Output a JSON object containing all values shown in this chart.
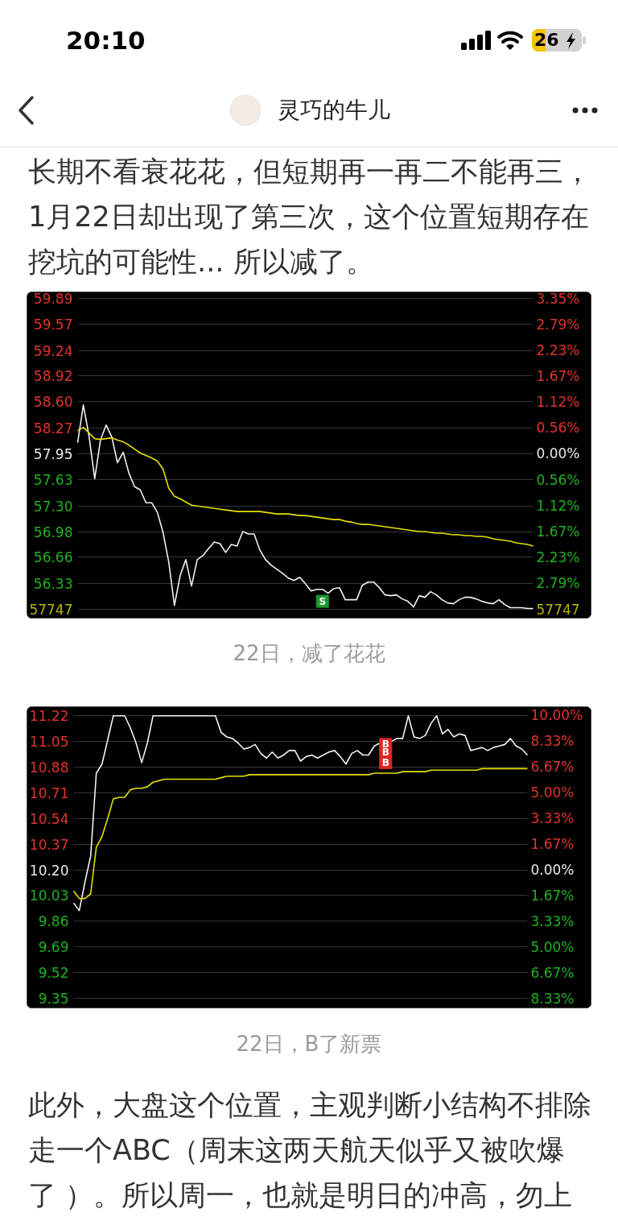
{
  "chart_data": [
    {
      "type": "line",
      "categories": [
        null,
        null,
        null,
        null,
        null,
        null,
        null,
        null,
        null,
        null,
        null,
        null,
        null,
        null,
        null,
        null,
        null,
        null,
        null,
        null,
        null,
        null,
        null,
        null,
        null,
        null,
        null,
        null,
        null,
        null,
        null,
        null,
        null,
        null,
        null,
        null,
        null,
        null,
        null,
        null,
        null,
        null,
        null,
        null,
        null,
        null,
        null,
        null,
        null,
        null,
        null,
        null,
        null,
        null,
        null,
        null,
        null,
        null,
        null,
        null,
        null,
        null,
        null,
        null,
        null,
        null,
        null,
        null,
        null,
        null,
        null,
        null,
        null,
        null,
        null,
        null,
        null,
        null,
        null,
        null,
        null
      ],
      "ylim": [
        55.89,
        59.97
      ],
      "yticks": [
        59.89,
        59.57,
        59.24,
        58.92,
        {
          "value": 58.6,
          "label": "58.60"
        },
        58.27,
        57.95,
        57.63,
        {
          "value": 57.3,
          "label": "57.30"
        },
        56.98,
        56.66,
        56.33,
        {
          "value": 56.01,
          "label": null
        }
      ],
      "y2lim": [
        -3.56,
        3.49
      ],
      "y2ticks": [
        {
          "value": 3.35,
          "label": "3.35%"
        },
        {
          "value": 2.79,
          "label": "2.79%"
        },
        {
          "value": 2.23,
          "label": "2.23%"
        },
        {
          "value": 1.67,
          "label": "1.67%"
        },
        {
          "value": 1.12,
          "label": "1.12%"
        },
        {
          "value": 0.56,
          "label": "0.56%"
        },
        {
          "value": 0,
          "label": "0.00%"
        },
        {
          "value": -0.56,
          "label": "0.56%"
        },
        {
          "value": -1.12,
          "label": "1.12%"
        },
        {
          "value": -1.67,
          "label": "1.67%"
        },
        {
          "value": -2.23,
          "label": "2.23%"
        },
        {
          "value": -2.79,
          "label": "2.79%"
        }
      ],
      "grid": "y",
      "series": [
        {
          "color": "#f2f2f2",
          "values": [
            58.09,
            58.56,
            58.17,
            57.64,
            58.12,
            58.31,
            58.16,
            57.84,
            57.97,
            57.71,
            57.54,
            57.5,
            57.34,
            57.34,
            57.22,
            56.97,
            56.6,
            56.06,
            56.43,
            56.63,
            56.3,
            56.63,
            56.68,
            56.77,
            56.85,
            56.83,
            56.72,
            56.82,
            56.8,
            56.98,
            56.95,
            56.95,
            56.75,
            56.63,
            56.56,
            56.51,
            56.46,
            56.4,
            56.37,
            56.41,
            56.33,
            56.24,
            56.26,
            56.26,
            56.21,
            56.27,
            56.28,
            56.13,
            56.13,
            56.13,
            56.31,
            56.35,
            56.35,
            56.28,
            56.19,
            56.18,
            56.19,
            56.14,
            56.11,
            56.04,
            56.18,
            56.16,
            56.23,
            56.19,
            56.13,
            56.09,
            56.08,
            56.13,
            56.16,
            56.16,
            56.14,
            56.11,
            56.09,
            56.08,
            56.13,
            56.07,
            56.03,
            56.03,
            56.03,
            56.02,
            56.02
          ]
        },
        {
          "color": "#e3e000",
          "values": [
            58.24,
            58.28,
            58.21,
            58.14,
            58.13,
            58.14,
            58.15,
            58.12,
            58.1,
            58.06,
            58.01,
            57.96,
            57.93,
            57.9,
            57.86,
            57.76,
            57.52,
            57.42,
            57.39,
            57.35,
            57.31,
            57.3,
            57.29,
            57.28,
            57.27,
            57.26,
            57.25,
            57.24,
            57.23,
            57.23,
            57.23,
            57.23,
            57.23,
            57.22,
            57.21,
            57.2,
            57.2,
            57.2,
            57.19,
            57.18,
            57.18,
            57.17,
            57.16,
            57.15,
            57.14,
            57.13,
            57.13,
            57.11,
            57.1,
            57.08,
            57.07,
            57.07,
            57.06,
            57.05,
            57.04,
            57.03,
            57.02,
            57.01,
            57.0,
            56.99,
            56.98,
            56.98,
            56.97,
            56.96,
            56.96,
            56.95,
            56.94,
            56.94,
            56.93,
            56.93,
            56.92,
            56.92,
            56.91,
            56.89,
            56.88,
            56.87,
            56.86,
            56.84,
            56.83,
            56.82,
            56.8
          ]
        },
        {
          "type": "scatter",
          "marker": "square",
          "color": "#1f9a30",
          "values": [
            null,
            null,
            null,
            null,
            null,
            null,
            null,
            null,
            null,
            null,
            null,
            null,
            null,
            null,
            null,
            null,
            null,
            null,
            null,
            null,
            null,
            null,
            null,
            null,
            null,
            null,
            null,
            null,
            null,
            null,
            null,
            null,
            null,
            null,
            null,
            null,
            null,
            null,
            null,
            null,
            null,
            null,
            null,
            56.11,
            null,
            null,
            null,
            null,
            null,
            null,
            null,
            null,
            null,
            null,
            null,
            null,
            null,
            null,
            null,
            null,
            null,
            null,
            null,
            null,
            null,
            null,
            null,
            null,
            null,
            null,
            null,
            null,
            null,
            null,
            null,
            null,
            null,
            null,
            null,
            null,
            null
          ],
          "value_labels": [
            null,
            null,
            null,
            null,
            null,
            null,
            null,
            null,
            null,
            null,
            null,
            null,
            null,
            null,
            null,
            null,
            null,
            null,
            null,
            null,
            null,
            null,
            null,
            null,
            null,
            null,
            null,
            null,
            null,
            null,
            null,
            null,
            null,
            null,
            null,
            null,
            null,
            null,
            null,
            null,
            null,
            null,
            null,
            "S",
            null,
            null,
            null,
            null,
            null,
            null,
            null,
            null,
            null,
            null,
            null,
            null,
            null,
            null,
            null,
            null,
            null,
            null,
            null,
            null,
            null,
            null,
            null,
            null,
            null,
            null,
            null,
            null,
            null,
            null,
            null,
            null,
            null,
            null,
            null,
            null,
            null
          ]
        }
      ],
      "annotations": [
        "20:10",
        "26",
        "灵巧的牛儿",
        "长期不看衰花花，但短期再一再二不能再三，",
        "1月22日却出现了第三次，这个位置短期存在",
        "挖坑的可能性... 所以减了。",
        "57747",
        "57747",
        "22日，减了花花"
      ]
    },
    {
      "type": "line",
      "categories": [
        null,
        null,
        null,
        null,
        null,
        null,
        null,
        null,
        null,
        null,
        null,
        null,
        null,
        null,
        null,
        null,
        null,
        null,
        null,
        null,
        null,
        null,
        null,
        null,
        null,
        null,
        null,
        null,
        null,
        null,
        null,
        null,
        null,
        null,
        null,
        null,
        null,
        null,
        null,
        null,
        null,
        null,
        null,
        null,
        null,
        null,
        null,
        null,
        null,
        null,
        null,
        null,
        null,
        null,
        null,
        null,
        null,
        null,
        null,
        null,
        null,
        null,
        null,
        null,
        null,
        null,
        null,
        null,
        null,
        null,
        null,
        null,
        null,
        null,
        null,
        null,
        null,
        null,
        null,
        null,
        null
      ],
      "ylim": [
        9.28,
        11.28
      ],
      "yticks": [
        11.22,
        11.05,
        10.88,
        10.71,
        10.54,
        10.37,
        {
          "value": 10.2,
          "label": "10.20"
        },
        10.03,
        9.86,
        9.69,
        9.52,
        9.35
      ],
      "y2lim": [
        -8.99,
        10.56
      ],
      "y2ticks": [
        {
          "value": 10.0,
          "label": "10.00%"
        },
        {
          "value": 8.33,
          "label": "8.33%"
        },
        {
          "value": 6.67,
          "label": "6.67%"
        },
        {
          "value": 5.0,
          "label": "5.00%"
        },
        {
          "value": 3.33,
          "label": "3.33%"
        },
        {
          "value": 1.67,
          "label": "1.67%"
        },
        {
          "value": 0,
          "label": "0.00%"
        },
        {
          "value": -1.67,
          "label": "1.67%"
        },
        {
          "value": -3.33,
          "label": "3.33%"
        },
        {
          "value": -5.0,
          "label": "5.00%"
        },
        {
          "value": -6.67,
          "label": "6.67%"
        },
        {
          "value": -8.33,
          "label": "8.33%"
        }
      ],
      "grid": "y",
      "series": [
        {
          "color": "#f2f2f2",
          "values": [
            9.98,
            9.93,
            10.12,
            10.29,
            10.84,
            10.9,
            11.06,
            11.22,
            11.22,
            11.22,
            11.14,
            11.04,
            10.91,
            11.04,
            11.22,
            11.22,
            11.22,
            11.22,
            11.22,
            11.22,
            11.22,
            11.22,
            11.22,
            11.22,
            11.22,
            11.22,
            11.11,
            11.08,
            11.07,
            11.04,
            11.0,
            11.01,
            11.03,
            10.97,
            10.94,
            10.98,
            10.94,
            10.96,
            10.99,
            10.99,
            10.92,
            10.95,
            10.96,
            10.94,
            10.96,
            10.98,
            10.99,
            10.95,
            10.9,
            10.97,
            10.99,
            10.96,
            10.96,
            11.02,
            11.04,
            11.04,
            11.05,
            11.07,
            11.07,
            11.22,
            11.08,
            11.07,
            11.09,
            11.17,
            11.22,
            11.1,
            11.13,
            11.08,
            11.1,
            11.09,
            10.99,
            11.0,
            11.01,
            10.99,
            11.01,
            11.02,
            11.03,
            11.07,
            11.02,
            11.0,
            10.96
          ]
        },
        {
          "color": "#e3e000",
          "values": [
            10.06,
            10.01,
            10.01,
            10.04,
            10.35,
            10.42,
            10.54,
            10.67,
            10.68,
            10.68,
            10.73,
            10.74,
            10.74,
            10.75,
            10.78,
            10.79,
            10.8,
            10.8,
            10.8,
            10.8,
            10.8,
            10.8,
            10.8,
            10.8,
            10.8,
            10.8,
            10.81,
            10.82,
            10.82,
            10.82,
            10.82,
            10.83,
            10.83,
            10.83,
            10.83,
            10.83,
            10.83,
            10.83,
            10.83,
            10.83,
            10.83,
            10.83,
            10.83,
            10.83,
            10.83,
            10.83,
            10.83,
            10.83,
            10.83,
            10.83,
            10.83,
            10.83,
            10.83,
            10.84,
            10.84,
            10.84,
            10.84,
            10.84,
            10.85,
            10.85,
            10.85,
            10.85,
            10.85,
            10.86,
            10.86,
            10.86,
            10.86,
            10.86,
            10.86,
            10.86,
            10.86,
            10.86,
            10.87,
            10.87,
            10.87,
            10.87,
            10.87,
            10.87,
            10.87,
            10.87,
            10.87
          ]
        },
        {
          "type": "scatter",
          "marker": "square",
          "color": "#e02424",
          "values": [
            null,
            null,
            null,
            null,
            null,
            null,
            null,
            null,
            null,
            null,
            null,
            null,
            null,
            null,
            null,
            null,
            null,
            null,
            null,
            null,
            null,
            null,
            null,
            null,
            null,
            null,
            null,
            null,
            null,
            null,
            null,
            null,
            null,
            null,
            null,
            null,
            null,
            null,
            null,
            null,
            null,
            null,
            null,
            null,
            null,
            null,
            null,
            null,
            null,
            null,
            null,
            null,
            null,
            null,
            null,
            11.03,
            null,
            null,
            null,
            null,
            null,
            null,
            null,
            null,
            null,
            null,
            null,
            null,
            null,
            null,
            null,
            null,
            null,
            null,
            null,
            null,
            null,
            null,
            null,
            null,
            null
          ],
          "value_labels": [
            null,
            null,
            null,
            null,
            null,
            null,
            null,
            null,
            null,
            null,
            null,
            null,
            null,
            null,
            null,
            null,
            null,
            null,
            null,
            null,
            null,
            null,
            null,
            null,
            null,
            null,
            null,
            null,
            null,
            null,
            null,
            null,
            null,
            null,
            null,
            null,
            null,
            null,
            null,
            null,
            null,
            null,
            null,
            null,
            null,
            null,
            null,
            null,
            null,
            null,
            null,
            null,
            null,
            null,
            null,
            "B",
            null,
            null,
            null,
            null,
            null,
            null,
            null,
            null,
            null,
            null,
            null,
            null,
            null,
            null,
            null,
            null,
            null,
            null,
            null,
            null,
            null,
            null,
            null,
            null,
            null
          ]
        },
        {
          "type": "scatter",
          "marker": "square",
          "color": "#e02424",
          "values": [
            null,
            null,
            null,
            null,
            null,
            null,
            null,
            null,
            null,
            null,
            null,
            null,
            null,
            null,
            null,
            null,
            null,
            null,
            null,
            null,
            null,
            null,
            null,
            null,
            null,
            null,
            null,
            null,
            null,
            null,
            null,
            null,
            null,
            null,
            null,
            null,
            null,
            null,
            null,
            null,
            null,
            null,
            null,
            null,
            null,
            null,
            null,
            null,
            null,
            null,
            null,
            null,
            null,
            null,
            null,
            10.98,
            null,
            null,
            null,
            null,
            null,
            null,
            null,
            null,
            null,
            null,
            null,
            null,
            null,
            null,
            null,
            null,
            null,
            null,
            null,
            null,
            null,
            null,
            null,
            null,
            null
          ],
          "value_labels": [
            null,
            null,
            null,
            null,
            null,
            null,
            null,
            null,
            null,
            null,
            null,
            null,
            null,
            null,
            null,
            null,
            null,
            null,
            null,
            null,
            null,
            null,
            null,
            null,
            null,
            null,
            null,
            null,
            null,
            null,
            null,
            null,
            null,
            null,
            null,
            null,
            null,
            null,
            null,
            null,
            null,
            null,
            null,
            null,
            null,
            null,
            null,
            null,
            null,
            null,
            null,
            null,
            null,
            null,
            null,
            "B",
            null,
            null,
            null,
            null,
            null,
            null,
            null,
            null,
            null,
            null,
            null,
            null,
            null,
            null,
            null,
            null,
            null,
            null,
            null,
            null,
            null,
            null,
            null,
            null,
            null
          ]
        },
        {
          "type": "scatter",
          "marker": "square",
          "color": "#e02424",
          "values": [
            null,
            null,
            null,
            null,
            null,
            null,
            null,
            null,
            null,
            null,
            null,
            null,
            null,
            null,
            null,
            null,
            null,
            null,
            null,
            null,
            null,
            null,
            null,
            null,
            null,
            null,
            null,
            null,
            null,
            null,
            null,
            null,
            null,
            null,
            null,
            null,
            null,
            null,
            null,
            null,
            null,
            null,
            null,
            null,
            null,
            null,
            null,
            null,
            null,
            null,
            null,
            null,
            null,
            null,
            null,
            10.91,
            null,
            null,
            null,
            null,
            null,
            null,
            null,
            null,
            null,
            null,
            null,
            null,
            null,
            null,
            null,
            null,
            null,
            null,
            null,
            null,
            null,
            null,
            null,
            null,
            null
          ],
          "value_labels": [
            null,
            null,
            null,
            null,
            null,
            null,
            null,
            null,
            null,
            null,
            null,
            null,
            null,
            null,
            null,
            null,
            null,
            null,
            null,
            null,
            null,
            null,
            null,
            null,
            null,
            null,
            null,
            null,
            null,
            null,
            null,
            null,
            null,
            null,
            null,
            null,
            null,
            null,
            null,
            null,
            null,
            null,
            null,
            null,
            null,
            null,
            null,
            null,
            null,
            null,
            null,
            null,
            null,
            null,
            null,
            "B",
            null,
            null,
            null,
            null,
            null,
            null,
            null,
            null,
            null,
            null,
            null,
            null,
            null,
            null,
            null,
            null,
            null,
            null,
            null,
            null,
            null,
            null,
            null,
            null,
            null
          ]
        }
      ],
      "annotations": [
        "22日，B了新票",
        "此外，大盘这个位置，主观判断小结构不排除",
        "走一个ABC（周末这两天航天似乎又被吹爆",
        "了 ）。所以周一，也就是明日的冲高，勿上"
      ]
    }
  ]
}
